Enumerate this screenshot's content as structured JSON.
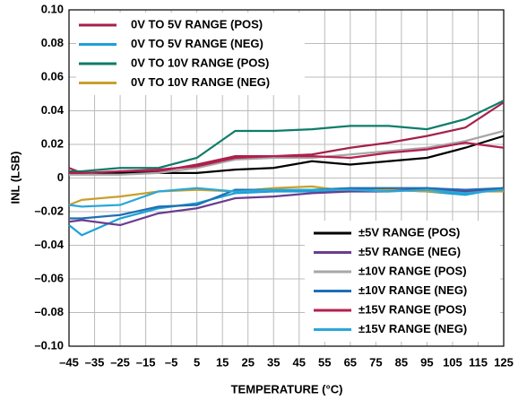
{
  "chart_data": {
    "type": "line",
    "xlabel": "TEMPERATURE (°C)",
    "ylabel": "INL (LSB)",
    "x": [
      -45,
      -40,
      -25,
      -10,
      5,
      20,
      35,
      50,
      65,
      80,
      95,
      110,
      125
    ],
    "xlim": [
      -45,
      125
    ],
    "xticks": [
      {
        "value": -45,
        "label": "–45"
      },
      {
        "value": -35,
        "label": "–35"
      },
      {
        "value": -25,
        "label": "–25"
      },
      {
        "value": -15,
        "label": "–15"
      },
      {
        "value": -5,
        "label": "–5"
      },
      5,
      15,
      25,
      35,
      45,
      55,
      65,
      75,
      85,
      95,
      105,
      115,
      125
    ],
    "ylim": [
      -0.1,
      0.1
    ],
    "yticks": [
      {
        "value": 0.1,
        "label": "0.10"
      },
      {
        "value": 0.08,
        "label": "0.08"
      },
      {
        "value": 0.06,
        "label": "0.06"
      },
      {
        "value": 0.04,
        "label": "0.04"
      },
      {
        "value": 0.02,
        "label": "0.02"
      },
      0,
      {
        "value": -0.02,
        "label": "–0.02"
      },
      {
        "value": -0.04,
        "label": "–0.04"
      },
      {
        "value": -0.06,
        "label": "–0.06"
      },
      {
        "value": -0.08,
        "label": "–0.08"
      },
      {
        "value": -0.1,
        "label": "–0.10"
      }
    ],
    "grid": true,
    "series": [
      {
        "name": "0V TO 5V RANGE (POS)",
        "color": "#a6204a",
        "legend": "upper left",
        "values": [
          0.006,
          0.003,
          0.003,
          0.004,
          0.008,
          0.013,
          0.013,
          0.014,
          0.018,
          0.021,
          0.025,
          0.03,
          0.045
        ]
      },
      {
        "name": "0V TO 5V RANGE (NEG)",
        "color": "#1ba1d8",
        "legend": "upper left",
        "values": [
          -0.028,
          -0.034,
          -0.024,
          -0.018,
          -0.015,
          -0.009,
          -0.008,
          -0.008,
          -0.007,
          -0.007,
          -0.008,
          -0.01,
          -0.006
        ]
      },
      {
        "name": "0V TO 10V RANGE (POS)",
        "color": "#0e7c6b",
        "legend": "upper left",
        "values": [
          0.004,
          0.004,
          0.006,
          0.006,
          0.012,
          0.028,
          0.028,
          0.029,
          0.031,
          0.031,
          0.029,
          0.035,
          0.046
        ]
      },
      {
        "name": "0V TO 10V RANGE (NEG)",
        "color": "#c9a02c",
        "legend": "upper left",
        "values": [
          -0.016,
          -0.013,
          -0.011,
          -0.008,
          -0.007,
          -0.008,
          -0.006,
          -0.005,
          -0.008,
          -0.007,
          -0.008,
          -0.008,
          -0.008
        ]
      },
      {
        "name": "±5V RANGE (POS)",
        "color": "#000000",
        "legend": "lower right",
        "values": [
          0.003,
          0.003,
          0.003,
          0.003,
          0.003,
          0.005,
          0.006,
          0.01,
          0.008,
          0.01,
          0.012,
          0.018,
          0.025
        ]
      },
      {
        "name": "±5V RANGE (NEG)",
        "color": "#6a3d8f",
        "legend": "lower right",
        "values": [
          -0.026,
          -0.025,
          -0.028,
          -0.021,
          -0.018,
          -0.012,
          -0.011,
          -0.009,
          -0.008,
          -0.008,
          -0.006,
          -0.008,
          -0.006
        ]
      },
      {
        "name": "±10V RANGE (POS)",
        "color": "#a7a7a7",
        "legend": "lower right",
        "values": [
          0.002,
          0.002,
          0.002,
          0.003,
          0.006,
          0.011,
          0.012,
          0.012,
          0.014,
          0.016,
          0.018,
          0.022,
          0.028
        ]
      },
      {
        "name": "±10V RANGE (NEG)",
        "color": "#1f6fb3",
        "legend": "lower right",
        "values": [
          -0.024,
          -0.024,
          -0.022,
          -0.017,
          -0.016,
          -0.007,
          -0.007,
          -0.007,
          -0.006,
          -0.006,
          -0.006,
          -0.007,
          -0.006
        ]
      },
      {
        "name": "±15V RANGE (POS)",
        "color": "#b51f4e",
        "legend": "lower right",
        "values": [
          0.003,
          0.003,
          0.004,
          0.005,
          0.007,
          0.012,
          0.013,
          0.013,
          0.012,
          0.015,
          0.017,
          0.021,
          0.018
        ]
      },
      {
        "name": "±15V RANGE (NEG)",
        "color": "#2aa7d9",
        "legend": "lower right",
        "values": [
          -0.016,
          -0.017,
          -0.016,
          -0.008,
          -0.006,
          -0.008,
          -0.007,
          -0.007,
          -0.007,
          -0.008,
          -0.007,
          -0.009,
          -0.007
        ]
      }
    ]
  }
}
